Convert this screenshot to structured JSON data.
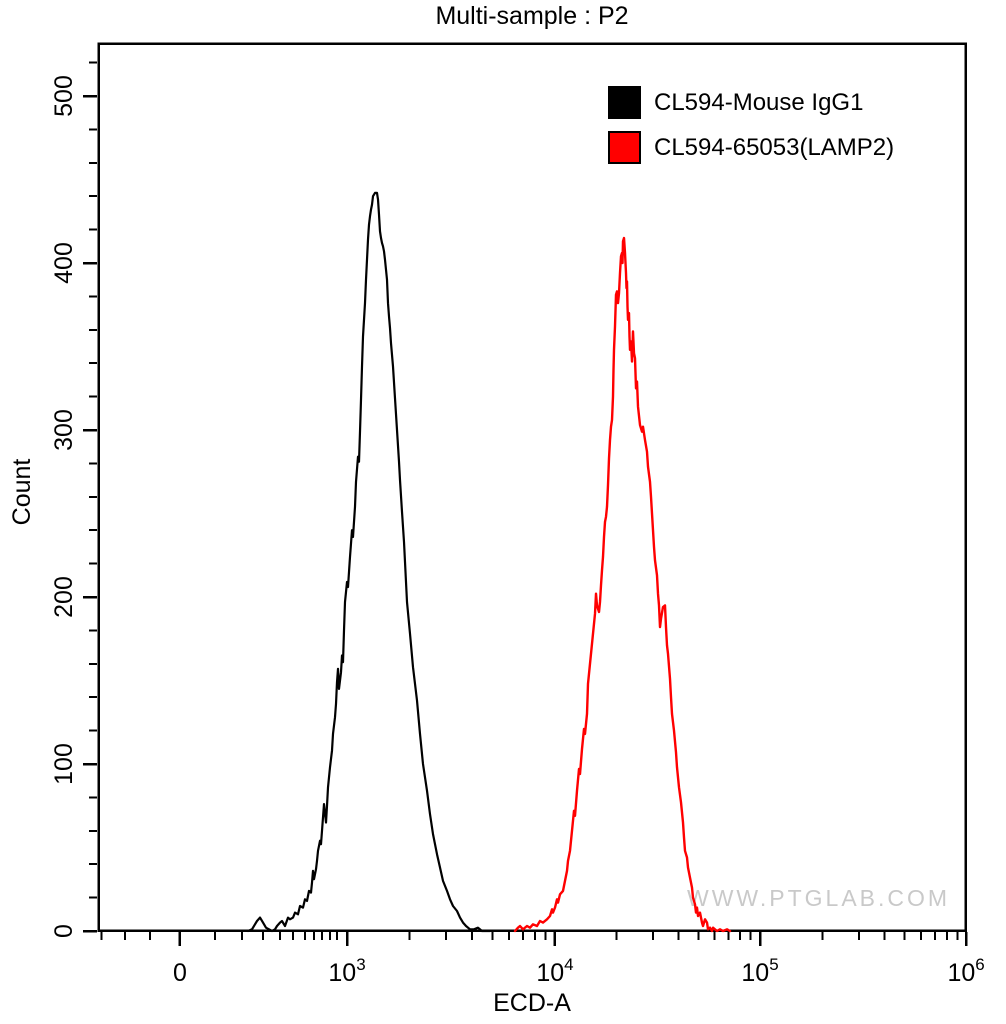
{
  "title": "Multi-sample : P2",
  "watermark": "WWW.PTGLAB.COM",
  "legend": {
    "position": "top-right",
    "items": [
      {
        "label": "CL594-Mouse IgG1",
        "color": "#000000"
      },
      {
        "label": "CL594-65053(LAMP2)",
        "color": "#ff0000"
      }
    ]
  },
  "chart_data": {
    "type": "line",
    "title": "Multi-sample : P2",
    "xlabel": "ECD-A",
    "ylabel": "Count",
    "grid": false,
    "legend_position": "top-right",
    "x_scale": "biexponential-log",
    "y_axis": {
      "min": 0,
      "max": 532,
      "major_step": 100,
      "minor_step": 20,
      "major_ticks": [
        0,
        100,
        200,
        300,
        400,
        500
      ],
      "minor_ticks": [
        20,
        40,
        60,
        80,
        120,
        140,
        160,
        180,
        220,
        240,
        260,
        280,
        320,
        340,
        360,
        380,
        420,
        440,
        460,
        480,
        520
      ]
    },
    "x_axis": {
      "major_ticks": [
        {
          "label": "0",
          "exp": "",
          "pos": 0.0954,
          "value": 0
        },
        {
          "label": "10",
          "exp": "3",
          "pos": 0.2874,
          "value": 1000
        },
        {
          "label": "10",
          "exp": "4",
          "pos": 0.5264,
          "value": 10000
        },
        {
          "label": "10",
          "exp": "5",
          "pos": 0.7621,
          "value": 100000
        },
        {
          "label": "10",
          "exp": "6",
          "pos": 0.999,
          "value": 1000000
        }
      ],
      "minor_ticks": [
        0.005,
        0.032,
        0.061,
        0.1356,
        0.1667,
        0.1908,
        0.2103,
        0.2253,
        0.2391,
        0.2494,
        0.2586,
        0.2678,
        0.2759,
        0.3593,
        0.4014,
        0.4313,
        0.4545,
        0.4734,
        0.4894,
        0.5032,
        0.5154,
        0.5974,
        0.6388,
        0.6683,
        0.6912,
        0.7098,
        0.7256,
        0.7392,
        0.7513,
        0.8337,
        0.8756,
        0.9053,
        0.9284,
        0.9472,
        0.9631,
        0.9768,
        0.9891
      ]
    },
    "series": [
      {
        "name": "CL594-Mouse IgG1",
        "color": "#000000",
        "peak_count": 442,
        "peak_x_value": 1400,
        "points": [
          [
            0.1736,
            0
          ],
          [
            0.1782,
            1
          ],
          [
            0.1816,
            4
          ],
          [
            0.1839,
            6
          ],
          [
            0.1874,
            8
          ],
          [
            0.1908,
            5
          ],
          [
            0.1943,
            2
          ],
          [
            0.1977,
            1
          ],
          [
            0.2011,
            0
          ],
          [
            0.2046,
            1
          ],
          [
            0.2069,
            3
          ],
          [
            0.2103,
            5
          ],
          [
            0.2126,
            6
          ],
          [
            0.2161,
            3
          ],
          [
            0.2195,
            8
          ],
          [
            0.2218,
            7
          ],
          [
            0.2253,
            8
          ],
          [
            0.2276,
            11
          ],
          [
            0.231,
            10
          ],
          [
            0.2333,
            15
          ],
          [
            0.2368,
            14
          ],
          [
            0.2391,
            19
          ],
          [
            0.2414,
            18
          ],
          [
            0.2437,
            24
          ],
          [
            0.246,
            23
          ],
          [
            0.2471,
            29
          ],
          [
            0.2483,
            36
          ],
          [
            0.2494,
            31
          ],
          [
            0.2517,
            37
          ],
          [
            0.2529,
            42
          ],
          [
            0.254,
            48
          ],
          [
            0.2563,
            54
          ],
          [
            0.2575,
            52
          ],
          [
            0.2586,
            60
          ],
          [
            0.2598,
            68
          ],
          [
            0.2609,
            76
          ],
          [
            0.2632,
            65
          ],
          [
            0.2644,
            75
          ],
          [
            0.2655,
            86
          ],
          [
            0.2678,
            98
          ],
          [
            0.2701,
            108
          ],
          [
            0.2713,
            118
          ],
          [
            0.2736,
            128
          ],
          [
            0.2747,
            136
          ],
          [
            0.2759,
            149
          ],
          [
            0.277,
            157
          ],
          [
            0.2782,
            145
          ],
          [
            0.2805,
            155
          ],
          [
            0.2816,
            165
          ],
          [
            0.2828,
            161
          ],
          [
            0.2839,
            180
          ],
          [
            0.2851,
            197
          ],
          [
            0.2874,
            209
          ],
          [
            0.2885,
            206
          ],
          [
            0.2908,
            224
          ],
          [
            0.2931,
            240
          ],
          [
            0.2943,
            236
          ],
          [
            0.2966,
            254
          ],
          [
            0.2977,
            269
          ],
          [
            0.3,
            284
          ],
          [
            0.3011,
            281
          ],
          [
            0.3023,
            299
          ],
          [
            0.3034,
            318
          ],
          [
            0.3046,
            338
          ],
          [
            0.3057,
            356
          ],
          [
            0.308,
            376
          ],
          [
            0.3092,
            390
          ],
          [
            0.3103,
            402
          ],
          [
            0.3115,
            414
          ],
          [
            0.3126,
            423
          ],
          [
            0.3138,
            428
          ],
          [
            0.3149,
            432
          ],
          [
            0.3161,
            435
          ],
          [
            0.3172,
            440
          ],
          [
            0.3195,
            442
          ],
          [
            0.3218,
            442
          ],
          [
            0.323,
            438
          ],
          [
            0.3241,
            429
          ],
          [
            0.3253,
            419
          ],
          [
            0.3264,
            415
          ],
          [
            0.3276,
            412
          ],
          [
            0.3287,
            410
          ],
          [
            0.3299,
            407
          ],
          [
            0.331,
            402
          ],
          [
            0.3322,
            396
          ],
          [
            0.3333,
            390
          ],
          [
            0.3345,
            376
          ],
          [
            0.3356,
            368
          ],
          [
            0.3368,
            361
          ],
          [
            0.3379,
            352
          ],
          [
            0.3391,
            345
          ],
          [
            0.3402,
            338
          ],
          [
            0.3425,
            319
          ],
          [
            0.3448,
            300
          ],
          [
            0.3471,
            281
          ],
          [
            0.3483,
            270
          ],
          [
            0.3506,
            251
          ],
          [
            0.3529,
            233
          ],
          [
            0.354,
            221
          ],
          [
            0.3552,
            209
          ],
          [
            0.3563,
            197
          ],
          [
            0.3598,
            178
          ],
          [
            0.3632,
            158
          ],
          [
            0.3678,
            138
          ],
          [
            0.3713,
            118
          ],
          [
            0.3747,
            100
          ],
          [
            0.3793,
            84
          ],
          [
            0.3828,
            70
          ],
          [
            0.3862,
            58
          ],
          [
            0.3908,
            46
          ],
          [
            0.3943,
            38
          ],
          [
            0.3977,
            30
          ],
          [
            0.4023,
            24
          ],
          [
            0.4057,
            19
          ],
          [
            0.4092,
            15
          ],
          [
            0.4138,
            12
          ],
          [
            0.4172,
            8
          ],
          [
            0.4207,
            5
          ],
          [
            0.4241,
            3
          ],
          [
            0.4287,
            1
          ],
          [
            0.4333,
            1
          ],
          [
            0.4379,
            2
          ],
          [
            0.4425,
            0
          ],
          [
            0.4517,
            0
          ]
        ]
      },
      {
        "name": "CL594-65053(LAMP2)",
        "color": "#ff0000",
        "peak_count": 415,
        "peak_x_value": 22000,
        "points": [
          [
            0.4805,
            0
          ],
          [
            0.4839,
            2
          ],
          [
            0.4862,
            3
          ],
          [
            0.4897,
            1
          ],
          [
            0.4943,
            3
          ],
          [
            0.4977,
            2
          ],
          [
            0.5011,
            4
          ],
          [
            0.5057,
            3
          ],
          [
            0.5092,
            6
          ],
          [
            0.5126,
            5
          ],
          [
            0.5172,
            7
          ],
          [
            0.5207,
            9
          ],
          [
            0.523,
            13
          ],
          [
            0.5241,
            11
          ],
          [
            0.5264,
            14
          ],
          [
            0.5287,
            19
          ],
          [
            0.5299,
            17
          ],
          [
            0.5322,
            22
          ],
          [
            0.5356,
            24
          ],
          [
            0.5379,
            30
          ],
          [
            0.5402,
            36
          ],
          [
            0.5414,
            42
          ],
          [
            0.5437,
            48
          ],
          [
            0.546,
            60
          ],
          [
            0.5483,
            72
          ],
          [
            0.5494,
            69
          ],
          [
            0.5517,
            84
          ],
          [
            0.554,
            97
          ],
          [
            0.5552,
            94
          ],
          [
            0.5575,
            109
          ],
          [
            0.5598,
            121
          ],
          [
            0.5609,
            118
          ],
          [
            0.5632,
            130
          ],
          [
            0.5644,
            148
          ],
          [
            0.5667,
            160
          ],
          [
            0.569,
            172
          ],
          [
            0.5701,
            178
          ],
          [
            0.5713,
            184
          ],
          [
            0.5724,
            190
          ],
          [
            0.5736,
            202
          ],
          [
            0.5747,
            195
          ],
          [
            0.577,
            191
          ],
          [
            0.5782,
            197
          ],
          [
            0.5793,
            207
          ],
          [
            0.5805,
            216
          ],
          [
            0.5816,
            224
          ],
          [
            0.5828,
            236
          ],
          [
            0.5839,
            245
          ],
          [
            0.5851,
            248
          ],
          [
            0.5862,
            254
          ],
          [
            0.5874,
            267
          ],
          [
            0.5885,
            283
          ],
          [
            0.5897,
            294
          ],
          [
            0.5908,
            302
          ],
          [
            0.592,
            306
          ],
          [
            0.5931,
            320
          ],
          [
            0.5937,
            336
          ],
          [
            0.5943,
            348
          ],
          [
            0.5954,
            362
          ],
          [
            0.5966,
            381
          ],
          [
            0.5977,
            383
          ],
          [
            0.5989,
            376
          ],
          [
            0.6,
            382
          ],
          [
            0.6011,
            394
          ],
          [
            0.6023,
            404
          ],
          [
            0.6034,
            406
          ],
          [
            0.604,
            400
          ],
          [
            0.6046,
            413
          ],
          [
            0.6057,
            415
          ],
          [
            0.6069,
            406
          ],
          [
            0.608,
            394
          ],
          [
            0.6086,
            385
          ],
          [
            0.6092,
            389
          ],
          [
            0.6098,
            374
          ],
          [
            0.6103,
            366
          ],
          [
            0.6115,
            370
          ],
          [
            0.6121,
            356
          ],
          [
            0.6126,
            348
          ],
          [
            0.6138,
            353
          ],
          [
            0.6149,
            341
          ],
          [
            0.6161,
            359
          ],
          [
            0.6172,
            346
          ],
          [
            0.6184,
            343
          ],
          [
            0.6195,
            325
          ],
          [
            0.6207,
            329
          ],
          [
            0.6218,
            314
          ],
          [
            0.6241,
            303
          ],
          [
            0.6264,
            299
          ],
          [
            0.6276,
            302
          ],
          [
            0.6299,
            294
          ],
          [
            0.6322,
            287
          ],
          [
            0.6333,
            278
          ],
          [
            0.6356,
            269
          ],
          [
            0.6368,
            260
          ],
          [
            0.6379,
            250
          ],
          [
            0.6391,
            240
          ],
          [
            0.6402,
            230
          ],
          [
            0.6414,
            222
          ],
          [
            0.6437,
            213
          ],
          [
            0.6448,
            202
          ],
          [
            0.646,
            195
          ],
          [
            0.6471,
            182
          ],
          [
            0.6483,
            187
          ],
          [
            0.6506,
            194
          ],
          [
            0.6529,
            195
          ],
          [
            0.654,
            182
          ],
          [
            0.6552,
            171
          ],
          [
            0.6563,
            166
          ],
          [
            0.6586,
            151
          ],
          [
            0.6598,
            140
          ],
          [
            0.6609,
            130
          ],
          [
            0.6632,
            120
          ],
          [
            0.6655,
            107
          ],
          [
            0.6667,
            98
          ],
          [
            0.669,
            86
          ],
          [
            0.6713,
            77
          ],
          [
            0.6736,
            65
          ],
          [
            0.6747,
            56
          ],
          [
            0.6759,
            48
          ],
          [
            0.6782,
            44
          ],
          [
            0.6793,
            38
          ],
          [
            0.6816,
            32
          ],
          [
            0.6839,
            26
          ],
          [
            0.6851,
            20
          ],
          [
            0.6874,
            16
          ],
          [
            0.6885,
            11
          ],
          [
            0.6897,
            14
          ],
          [
            0.6908,
            9
          ],
          [
            0.6931,
            11
          ],
          [
            0.6954,
            5
          ],
          [
            0.6966,
            3
          ],
          [
            0.6989,
            7
          ],
          [
            0.7011,
            5
          ],
          [
            0.7023,
            1
          ],
          [
            0.7046,
            2
          ],
          [
            0.7069,
            0
          ],
          [
            0.708,
            2
          ],
          [
            0.7126,
            0
          ],
          [
            0.7161,
            1
          ],
          [
            0.7195,
            0
          ],
          [
            0.7241,
            1
          ],
          [
            0.7276,
            0
          ]
        ]
      }
    ]
  }
}
